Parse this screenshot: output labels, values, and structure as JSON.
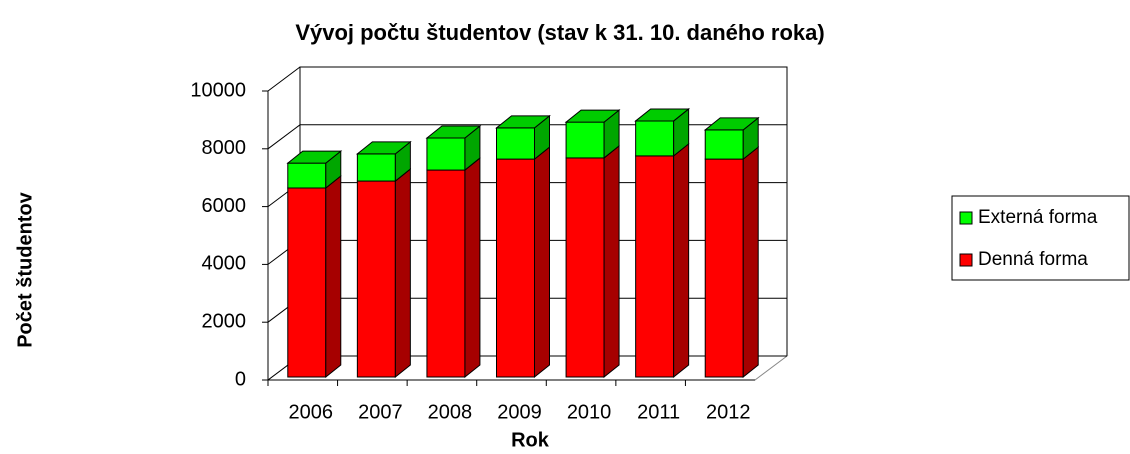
{
  "chart_data": {
    "type": "bar3d_stacked",
    "title": "Vývoj počtu študentov (stav k 31. 10. daného roka)",
    "x_label": "Rok",
    "y_label": "Počet študentov",
    "categories": [
      "2006",
      "2007",
      "2008",
      "2009",
      "2010",
      "2011",
      "2012"
    ],
    "series": [
      {
        "name": "Denná forma",
        "color": "#ff0000",
        "values": [
          6540,
          6780,
          7160,
          7540,
          7580,
          7650,
          7540
        ]
      },
      {
        "name": "Externá forma",
        "color": "#00ff00",
        "values": [
          860,
          940,
          1110,
          1080,
          1240,
          1210,
          1010
        ]
      }
    ],
    "ylim": [
      0,
      10000
    ],
    "yticks": [
      0,
      2000,
      4000,
      6000,
      8000,
      10000
    ],
    "grid": true,
    "legend": "right"
  }
}
